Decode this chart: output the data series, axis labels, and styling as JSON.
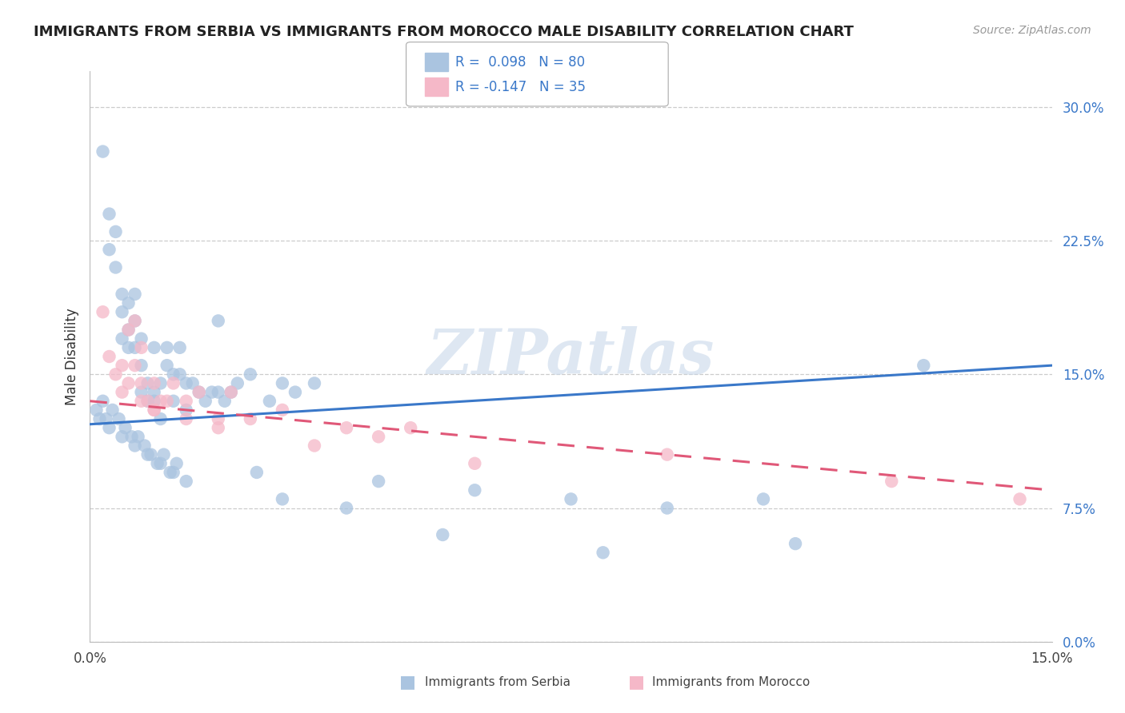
{
  "title": "IMMIGRANTS FROM SERBIA VS IMMIGRANTS FROM MOROCCO MALE DISABILITY CORRELATION CHART",
  "source": "Source: ZipAtlas.com",
  "ylabel": "Male Disability",
  "ytick_values": [
    0.0,
    7.5,
    15.0,
    22.5,
    30.0
  ],
  "xmin": 0.0,
  "xmax": 15.0,
  "ymin": 0.0,
  "ymax": 32.0,
  "serbia_R": 0.098,
  "serbia_N": 80,
  "morocco_R": -0.147,
  "morocco_N": 35,
  "serbia_color": "#aac4e0",
  "morocco_color": "#f5b8c8",
  "serbia_line_color": "#3a78c9",
  "morocco_line_color": "#e05878",
  "title_color": "#222222",
  "source_color": "#999999",
  "watermark": "ZIPatlas",
  "serbia_line_x0": 0.0,
  "serbia_line_y0": 12.2,
  "serbia_line_x1": 15.0,
  "serbia_line_y1": 15.5,
  "morocco_line_x0": 0.0,
  "morocco_line_y0": 13.5,
  "morocco_line_x1": 15.0,
  "morocco_line_y1": 8.5,
  "serbia_x": [
    0.2,
    0.3,
    0.3,
    0.4,
    0.4,
    0.5,
    0.5,
    0.5,
    0.6,
    0.6,
    0.6,
    0.7,
    0.7,
    0.7,
    0.8,
    0.8,
    0.8,
    0.9,
    0.9,
    1.0,
    1.0,
    1.0,
    1.1,
    1.1,
    1.2,
    1.2,
    1.3,
    1.3,
    1.4,
    1.4,
    1.5,
    1.5,
    1.6,
    1.7,
    1.8,
    1.9,
    2.0,
    2.1,
    2.2,
    2.3,
    2.5,
    2.8,
    3.0,
    3.2,
    3.5,
    0.1,
    0.15,
    0.2,
    0.25,
    0.35,
    0.45,
    0.55,
    0.65,
    0.75,
    0.85,
    0.95,
    1.05,
    1.15,
    1.25,
    1.35,
    2.6,
    4.5,
    6.0,
    7.5,
    9.0,
    10.5,
    2.0,
    3.0,
    4.0,
    5.5,
    8.0,
    11.0,
    13.0,
    0.3,
    0.5,
    0.7,
    0.9,
    1.1,
    1.3,
    1.5
  ],
  "serbia_y": [
    27.5,
    24.0,
    22.0,
    21.0,
    23.0,
    19.5,
    18.5,
    17.0,
    17.5,
    16.5,
    19.0,
    19.5,
    18.0,
    16.5,
    17.0,
    15.5,
    14.0,
    14.5,
    13.5,
    14.0,
    13.5,
    16.5,
    14.5,
    12.5,
    16.5,
    15.5,
    15.0,
    13.5,
    16.5,
    15.0,
    14.5,
    13.0,
    14.5,
    14.0,
    13.5,
    14.0,
    14.0,
    13.5,
    14.0,
    14.5,
    15.0,
    13.5,
    14.5,
    14.0,
    14.5,
    13.0,
    12.5,
    13.5,
    12.5,
    13.0,
    12.5,
    12.0,
    11.5,
    11.5,
    11.0,
    10.5,
    10.0,
    10.5,
    9.5,
    10.0,
    9.5,
    9.0,
    8.5,
    8.0,
    7.5,
    8.0,
    18.0,
    8.0,
    7.5,
    6.0,
    5.0,
    5.5,
    15.5,
    12.0,
    11.5,
    11.0,
    10.5,
    10.0,
    9.5,
    9.0
  ],
  "morocco_x": [
    0.2,
    0.3,
    0.4,
    0.5,
    0.5,
    0.6,
    0.7,
    0.7,
    0.8,
    0.8,
    0.9,
    1.0,
    1.0,
    1.1,
    1.2,
    1.3,
    1.5,
    1.7,
    2.0,
    2.2,
    2.5,
    3.0,
    4.0,
    5.0,
    0.6,
    0.8,
    1.0,
    1.5,
    2.0,
    3.5,
    4.5,
    6.0,
    9.0,
    12.5,
    14.5
  ],
  "morocco_y": [
    18.5,
    16.0,
    15.0,
    15.5,
    14.0,
    17.5,
    18.0,
    15.5,
    14.5,
    13.5,
    13.5,
    14.5,
    13.0,
    13.5,
    13.5,
    14.5,
    13.5,
    14.0,
    12.5,
    14.0,
    12.5,
    13.0,
    12.0,
    12.0,
    14.5,
    16.5,
    13.0,
    12.5,
    12.0,
    11.0,
    11.5,
    10.0,
    10.5,
    9.0,
    8.0
  ]
}
